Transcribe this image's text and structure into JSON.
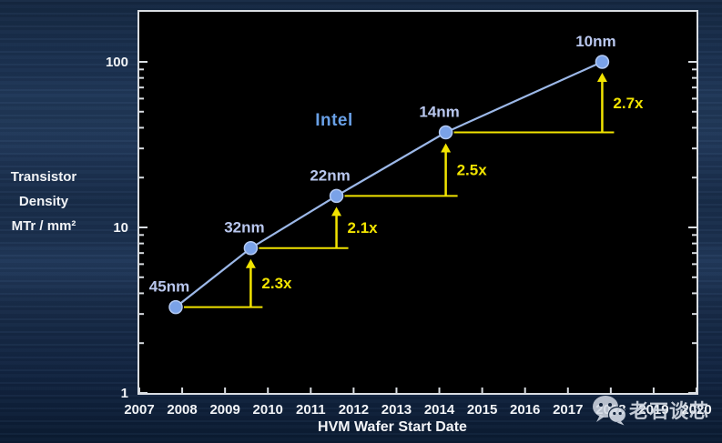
{
  "colors": {
    "plot_background": "#000000",
    "spine": "#d9dde2",
    "axis_text": "#f2f4f7",
    "series_line": "#9cb8e8",
    "marker_fill": "#7aa2e8",
    "marker_edge": "#b3c9f2",
    "node_label": "#b9c7ee",
    "annotation": "#f2e400",
    "brand": "#69a0e6",
    "watermark": "#d4dae4"
  },
  "y_axis_title_lines": [
    "Transistor",
    "Density",
    "MTr / mm²"
  ],
  "x_axis_title": "HVM Wafer Start Date",
  "brand_label": "Intel",
  "watermark": {
    "icon": "wechat-icon",
    "text": "老石谈芯"
  },
  "chart_data": {
    "type": "line",
    "title": "",
    "xlabel": "HVM Wafer Start Date",
    "ylabel": "Transistor Density MTr / mm²",
    "y_scale": "log",
    "xlim": [
      2007,
      2020
    ],
    "ylim": [
      1,
      200
    ],
    "grid": false,
    "legend": "none",
    "x_ticks": [
      2007,
      2008,
      2009,
      2010,
      2011,
      2012,
      2013,
      2014,
      2015,
      2016,
      2017,
      2018,
      2019,
      2020
    ],
    "y_ticks": [
      1,
      10,
      100
    ],
    "series": [
      {
        "name": "Intel",
        "points": [
          {
            "label": "45nm",
            "x": 2007.85,
            "y": 3.3
          },
          {
            "label": "32nm",
            "x": 2009.6,
            "y": 7.5
          },
          {
            "label": "22nm",
            "x": 2011.6,
            "y": 15.5
          },
          {
            "label": "14nm",
            "x": 2014.15,
            "y": 37.5
          },
          {
            "label": "10nm",
            "x": 2017.8,
            "y": 100
          }
        ]
      }
    ],
    "annotations": [
      {
        "label": "2.3x",
        "from_index": 0,
        "to_index": 1
      },
      {
        "label": "2.1x",
        "from_index": 1,
        "to_index": 2
      },
      {
        "label": "2.5x",
        "from_index": 2,
        "to_index": 3
      },
      {
        "label": "2.7x",
        "from_index": 3,
        "to_index": 4
      }
    ]
  }
}
